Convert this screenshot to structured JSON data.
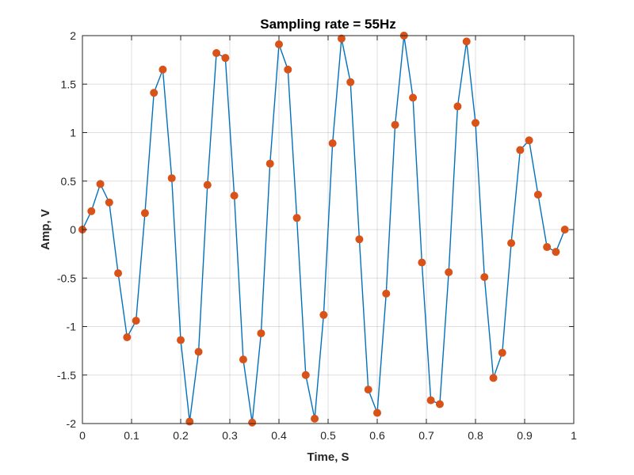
{
  "chart_data": {
    "type": "line",
    "title": "Sampling rate = 55Hz",
    "xlabel": "Time, S",
    "ylabel": "Amp, V",
    "xlim": [
      0,
      1
    ],
    "ylim": [
      -2,
      2
    ],
    "xticks": [
      0,
      0.1,
      0.2,
      0.3,
      0.4,
      0.5,
      0.6,
      0.7,
      0.8,
      0.9,
      1
    ],
    "xtick_labels": [
      "0",
      "0.1",
      "0.2",
      "0.3",
      "0.4",
      "0.5",
      "0.6",
      "0.7",
      "0.8",
      "0.9",
      "1"
    ],
    "yticks": [
      -2,
      -1.5,
      -1,
      -0.5,
      0,
      0.5,
      1,
      1.5,
      2
    ],
    "ytick_labels": [
      "-2",
      "-1.5",
      "-1",
      "-0.5",
      "0",
      "0.5",
      "1",
      "1.5",
      "2"
    ],
    "grid": true,
    "line_color": "#0072BD",
    "marker_color": "#D95319",
    "series": [
      {
        "x": [
          0,
          0.0182,
          0.0364,
          0.0545,
          0.0727,
          0.0909,
          0.1091,
          0.1273,
          0.1455,
          0.1636,
          0.1818,
          0.2,
          0.2182,
          0.2364,
          0.2545,
          0.2727,
          0.2909,
          0.3091,
          0.3273,
          0.3455,
          0.3636,
          0.3818,
          0.4,
          0.4182,
          0.4364,
          0.4545,
          0.4727,
          0.4909,
          0.5091,
          0.5273,
          0.5455,
          0.5636,
          0.5818,
          0.6,
          0.6182,
          0.6364,
          0.6545,
          0.6727,
          0.6909,
          0.7091,
          0.7273,
          0.7455,
          0.7636,
          0.7818,
          0.8,
          0.8182,
          0.8364,
          0.8545,
          0.8727,
          0.8909,
          0.9091,
          0.9273,
          0.9455,
          0.9636,
          0.9818
        ],
        "y": [
          0,
          0.19,
          0.47,
          0.28,
          -0.45,
          -1.11,
          -0.94,
          0.17,
          1.41,
          1.65,
          0.53,
          -1.14,
          -1.98,
          -1.26,
          0.46,
          1.82,
          1.77,
          0.35,
          -1.34,
          -1.99,
          -1.07,
          0.68,
          1.91,
          1.65,
          0.12,
          -1.5,
          -1.95,
          -0.88,
          0.89,
          1.97,
          1.52,
          -0.1,
          -1.65,
          -1.89,
          -0.66,
          1.08,
          2.0,
          1.36,
          -0.34,
          -1.76,
          -1.8,
          -0.44,
          1.27,
          1.94,
          1.1,
          -0.49,
          -1.53,
          -1.27,
          -0.14,
          0.82,
          0.92,
          0.36,
          -0.18,
          -0.23,
          0.0
        ]
      }
    ]
  }
}
